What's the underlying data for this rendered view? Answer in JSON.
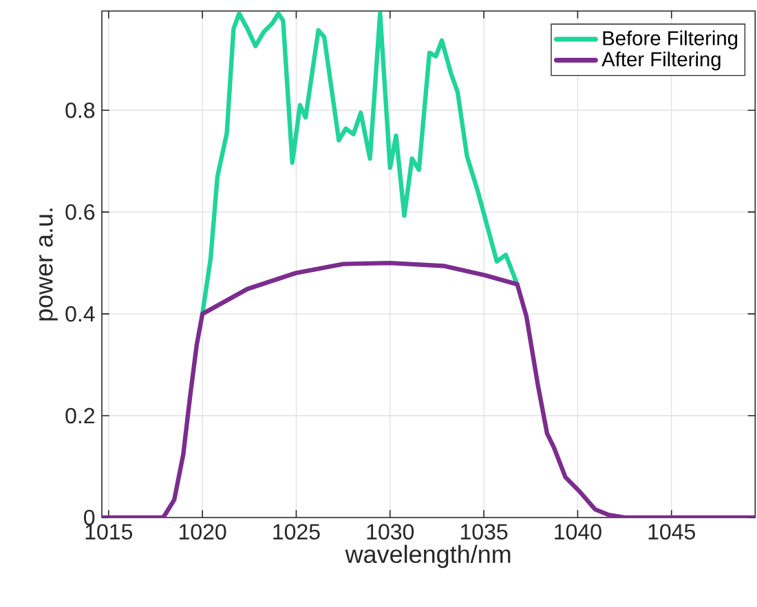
{
  "chart_data": {
    "type": "line",
    "xlabel": "wavelength/nm",
    "ylabel": "power a.u.",
    "xlim": [
      1014.64,
      1049.46
    ],
    "ylim": [
      0,
      0.995
    ],
    "xticks": [
      1015,
      1020,
      1025,
      1030,
      1035,
      1040,
      1045
    ],
    "yticks": [
      0,
      0.2,
      0.4,
      0.6,
      0.8
    ],
    "grid": true,
    "legend": "top right",
    "line_style": "solid",
    "marker": "none",
    "series": [
      {
        "name": "Before Filtering",
        "color": "#20d49a",
        "x": [
          1020.0,
          1020.44,
          1020.8,
          1021.3,
          1021.66,
          1021.96,
          1022.4,
          1022.83,
          1023.25,
          1023.73,
          1024.05,
          1024.3,
          1024.79,
          1025.2,
          1025.5,
          1026.18,
          1026.49,
          1027.27,
          1027.64,
          1028.05,
          1028.44,
          1028.93,
          1029.47,
          1030.0,
          1030.32,
          1030.76,
          1031.17,
          1031.54,
          1032.1,
          1032.44,
          1032.76,
          1033.25,
          1033.6,
          1034.1,
          1034.7,
          1035.69,
          1036.17,
          1036.78
        ],
        "values": [
          0.4,
          0.51,
          0.67,
          0.755,
          0.96,
          0.99,
          0.96,
          0.926,
          0.953,
          0.971,
          0.99,
          0.976,
          0.697,
          0.81,
          0.786,
          0.957,
          0.944,
          0.741,
          0.764,
          0.753,
          0.795,
          0.705,
          0.99,
          0.687,
          0.75,
          0.593,
          0.705,
          0.683,
          0.913,
          0.906,
          0.937,
          0.872,
          0.836,
          0.71,
          0.638,
          0.503,
          0.516,
          0.458
        ]
      },
      {
        "name": "After Filtering",
        "color": "#7b2d8e",
        "x": [
          1014.64,
          1017.9,
          1018.0,
          1018.5,
          1018.98,
          1019.35,
          1019.7,
          1020.0,
          1022.4,
          1024.96,
          1027.5,
          1030.0,
          1032.9,
          1035.05,
          1036.78,
          1037.27,
          1037.88,
          1038.37,
          1038.73,
          1039.35,
          1040.08,
          1040.93,
          1041.66,
          1042.5,
          1049.46
        ],
        "values": [
          0,
          0,
          0.005,
          0.035,
          0.124,
          0.24,
          0.34,
          0.4,
          0.449,
          0.48,
          0.498,
          0.5,
          0.494,
          0.476,
          0.458,
          0.395,
          0.26,
          0.165,
          0.138,
          0.079,
          0.052,
          0.016,
          0.005,
          0,
          0
        ]
      }
    ]
  }
}
